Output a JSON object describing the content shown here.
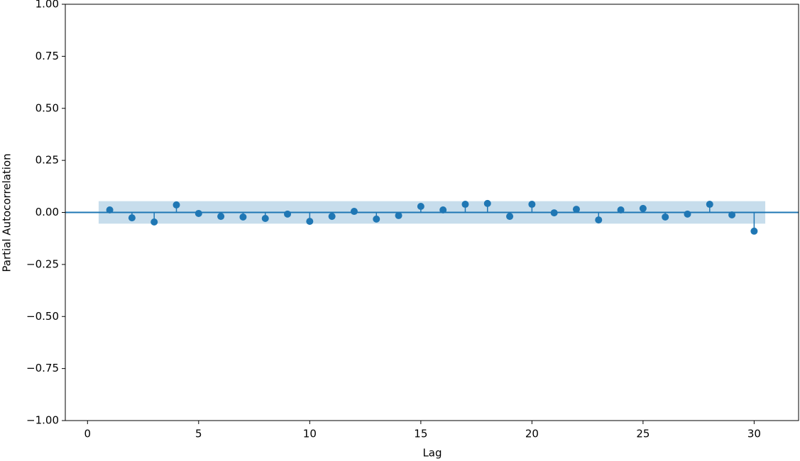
{
  "chart_data": {
    "type": "stem",
    "x_label": "Lag",
    "y_label": "Partial Autocorrelation",
    "x": [
      1,
      2,
      3,
      4,
      5,
      6,
      7,
      8,
      9,
      10,
      11,
      12,
      13,
      14,
      15,
      16,
      17,
      18,
      19,
      20,
      21,
      22,
      23,
      24,
      25,
      26,
      27,
      28,
      29,
      30
    ],
    "values": [
      0.012,
      -0.026,
      -0.046,
      0.036,
      -0.005,
      -0.019,
      -0.022,
      -0.029,
      -0.008,
      -0.043,
      -0.019,
      0.005,
      -0.032,
      -0.015,
      0.029,
      0.012,
      0.039,
      0.043,
      -0.019,
      0.039,
      -0.002,
      0.015,
      -0.036,
      0.012,
      0.019,
      -0.022,
      -0.008,
      0.039,
      -0.012,
      -0.09
    ],
    "color": "#1f77b4",
    "confidence_band": {
      "x": [
        0.5,
        30.5
      ],
      "y": [
        -0.054,
        0.054
      ],
      "color": "#1f77b4"
    },
    "xlim": [
      -1,
      32
    ],
    "ylim": [
      -1,
      1
    ],
    "xticks": [
      0,
      5,
      10,
      15,
      20,
      25,
      30
    ],
    "yticks": [
      {
        "value": -1,
        "label": "−1.00"
      },
      {
        "value": -0.75,
        "label": "−0.75"
      },
      {
        "value": -0.5,
        "label": "−0.50"
      },
      {
        "value": -0.25,
        "label": "−0.25"
      },
      {
        "value": 0,
        "label": "0.00"
      },
      0.25,
      {
        "value": 0.5,
        "label": "0.50"
      },
      0.75,
      {
        "value": 1,
        "label": "1.00"
      }
    ]
  }
}
